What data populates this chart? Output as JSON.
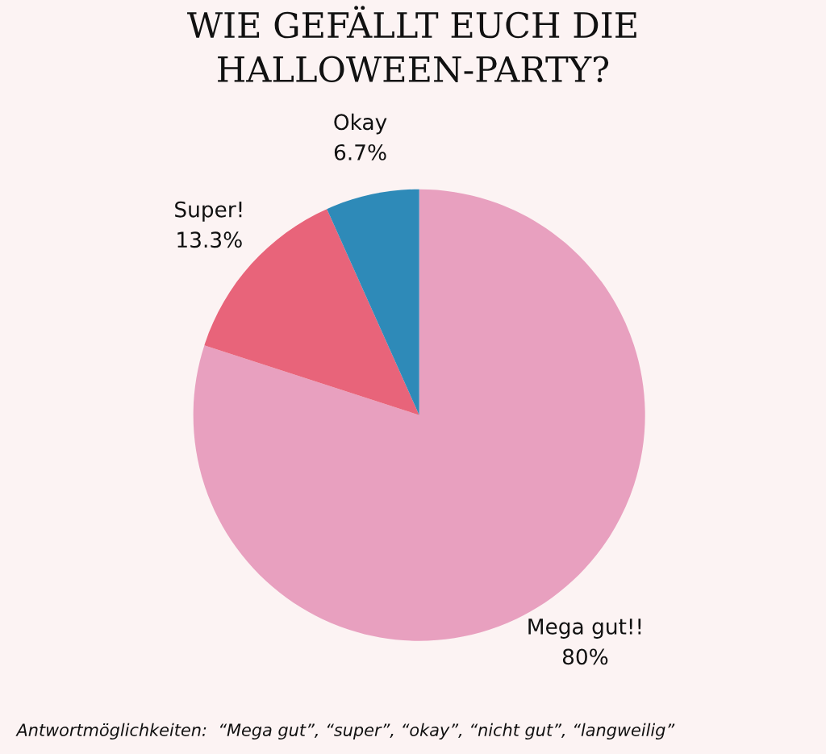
{
  "chart_data": {
    "type": "pie",
    "title": "WIE GEFÄLLT EUCH DIE HALLOWEEN-PARTY?",
    "categories": [
      "Mega gut!!",
      "Super!",
      "Okay"
    ],
    "values": [
      80,
      13.3,
      6.7
    ],
    "value_labels": [
      "80%",
      "13.3%",
      "6.7%"
    ],
    "colors": [
      "#e8a0bf",
      "#e8647a",
      "#2e8ab8"
    ],
    "annotations": [
      "Antwortmöglichkeiten:  “Mega gut”, “super”, “okay”, “nicht gut”, “langweilig”"
    ],
    "legend": false
  }
}
